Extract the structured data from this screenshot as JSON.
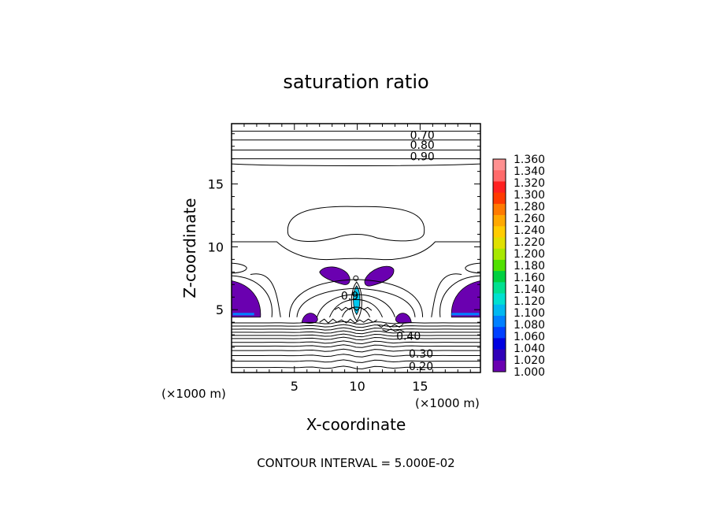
{
  "chart_data": {
    "type": "contour",
    "title": "saturation ratio",
    "xlabel": "X-coordinate",
    "ylabel": "Z-coordinate",
    "x_unit_label": "(×1000 m)",
    "y_unit_label": "(×1000 m)",
    "xlim": [
      0,
      19.8
    ],
    "ylim": [
      0,
      19.8
    ],
    "x_ticks": [
      5,
      10,
      15
    ],
    "y_ticks": [
      5,
      10,
      15
    ],
    "footer": "CONTOUR INTERVAL = 5.000E-02",
    "contour_interval": 0.05,
    "contour_labels": [
      {
        "text": "0.70",
        "x": 14.2,
        "z": 18.9
      },
      {
        "text": "0.80",
        "x": 14.2,
        "z": 18.1
      },
      {
        "text": "0.90",
        "x": 14.2,
        "z": 17.2
      },
      {
        "text": "0.9",
        "x": 8.7,
        "z": 6.1
      },
      {
        "text": "0.40",
        "x": 13.1,
        "z": 2.9
      },
      {
        "text": "0.30",
        "x": 14.1,
        "z": 1.5
      },
      {
        "text": "0.20",
        "x": 14.1,
        "z": 0.5
      }
    ],
    "colorbar": {
      "levels": [
        "1.360",
        "1.340",
        "1.320",
        "1.300",
        "1.280",
        "1.260",
        "1.240",
        "1.220",
        "1.200",
        "1.180",
        "1.160",
        "1.140",
        "1.120",
        "1.100",
        "1.080",
        "1.060",
        "1.040",
        "1.020",
        "1.000"
      ],
      "colors": [
        "#ff9090",
        "#ff6a6a",
        "#ff2020",
        "#ff3a00",
        "#ff7a00",
        "#ffa800",
        "#ffcc00",
        "#e0e000",
        "#a8e800",
        "#50e000",
        "#00d040",
        "#00e090",
        "#00e0d0",
        "#00b8f0",
        "#0080ff",
        "#0040ff",
        "#0000e0",
        "#3000b8",
        "#6a00b0"
      ]
    },
    "supersaturated_regions": [
      {
        "label": "left-edge lobe",
        "cx": 0.7,
        "cz": 5.6,
        "color": "#6a00b0"
      },
      {
        "label": "right-edge lobe",
        "cx": 19.1,
        "cz": 5.6,
        "color": "#6a00b0"
      },
      {
        "label": "upper-left lobe",
        "cx": 8.5,
        "cz": 7.7,
        "color": "#6a00b0"
      },
      {
        "label": "upper-right lobe",
        "cx": 11.8,
        "cz": 7.8,
        "color": "#6a00b0"
      },
      {
        "label": "central updraft core",
        "cx": 9.95,
        "cz": 5.7,
        "color": "#00c8f0"
      },
      {
        "label": "lower-left lobe",
        "cx": 6.2,
        "cz": 4.2,
        "color": "#6a00b0"
      },
      {
        "label": "lower-right lobe",
        "cx": 13.6,
        "cz": 4.2,
        "color": "#6a00b0"
      }
    ],
    "horizontal_contour_levels_z": [
      0.4,
      0.9,
      1.35,
      1.75,
      2.1,
      2.4,
      2.7,
      2.95,
      3.2,
      3.45,
      3.7,
      3.95,
      17.0,
      17.7,
      18.5,
      19.2
    ]
  }
}
